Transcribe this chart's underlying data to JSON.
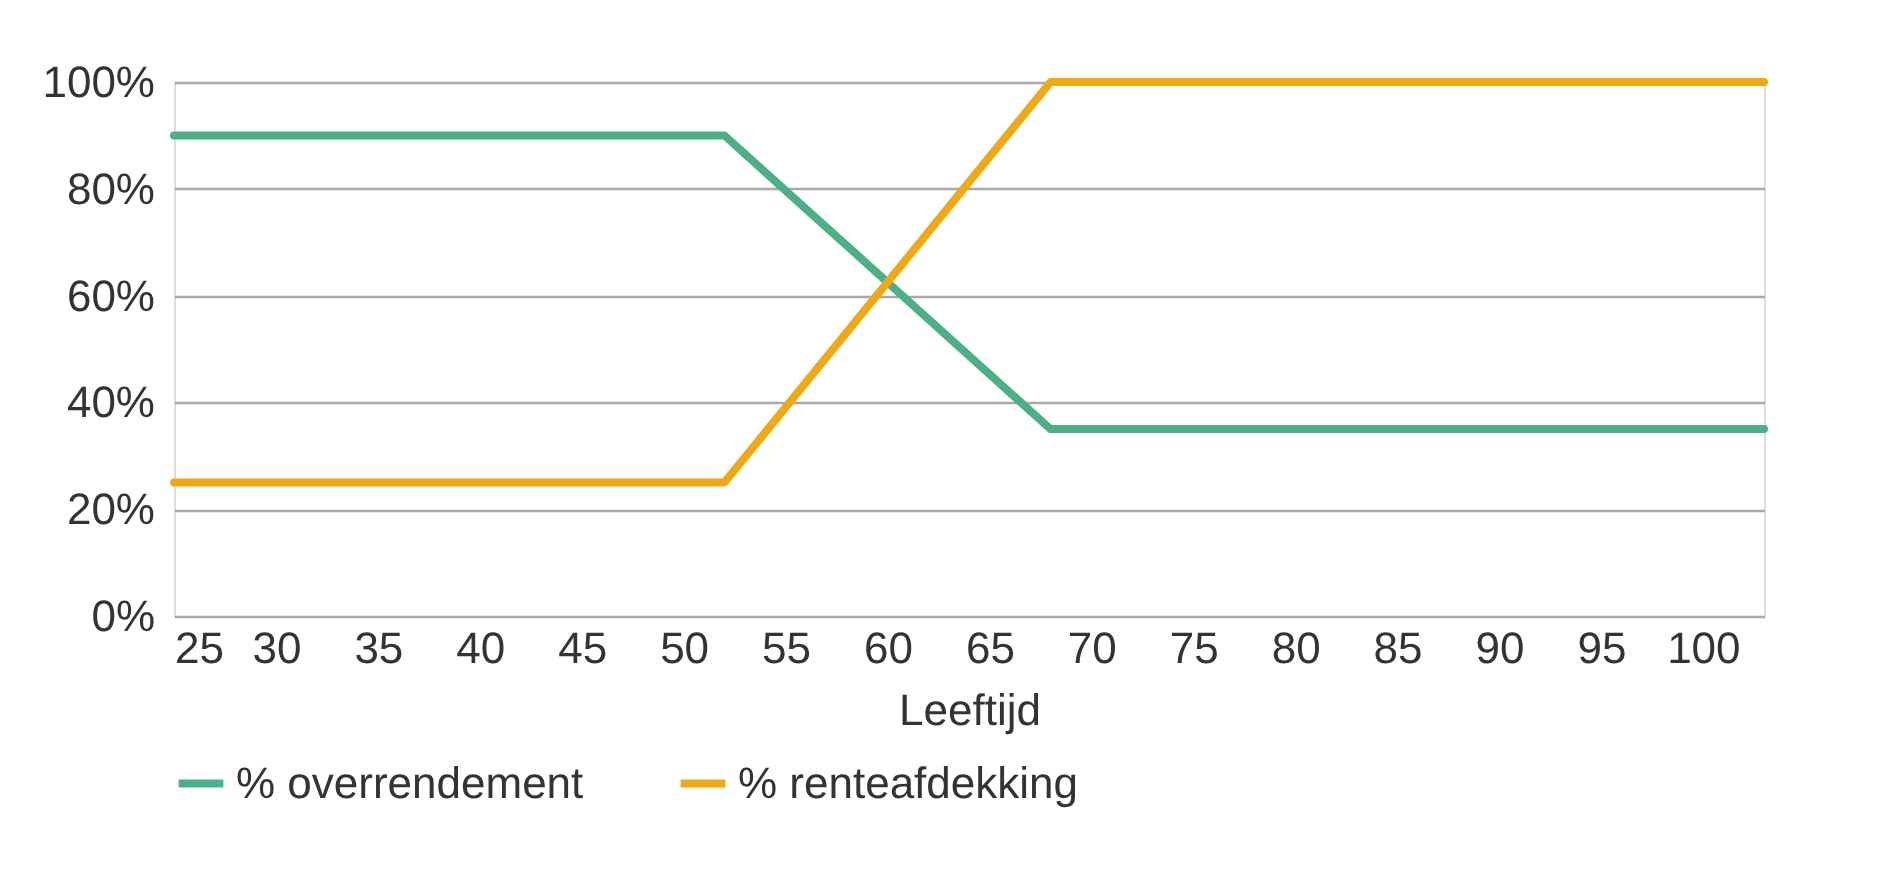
{
  "chart_data": {
    "type": "line",
    "xlabel": "Leeftijd",
    "xlim": [
      25,
      103
    ],
    "xticks": [
      25,
      30,
      35,
      40,
      45,
      50,
      55,
      60,
      65,
      70,
      75,
      80,
      85,
      90,
      95,
      100
    ],
    "ylim": [
      0,
      100
    ],
    "yticks": [
      {
        "value": 0,
        "label": "0%"
      },
      {
        "value": 20,
        "label": "20%"
      },
      {
        "value": 40,
        "label": "40%"
      },
      {
        "value": 60,
        "label": "60%"
      },
      {
        "value": 80,
        "label": "80%"
      },
      {
        "value": 100,
        "label": "100%"
      }
    ],
    "grid": "y",
    "legend": "bottom",
    "marker": "none",
    "line_style": "solid",
    "series": [
      {
        "name": "% overrendement",
        "color": "#4caf86",
        "x": [
          25,
          52,
          68,
          103
        ],
        "values": [
          90,
          90,
          35,
          35
        ]
      },
      {
        "name": "% renteafdekking",
        "color": "#eea914",
        "x": [
          25,
          52,
          68,
          103
        ],
        "values": [
          25,
          25,
          100,
          100
        ]
      }
    ]
  }
}
